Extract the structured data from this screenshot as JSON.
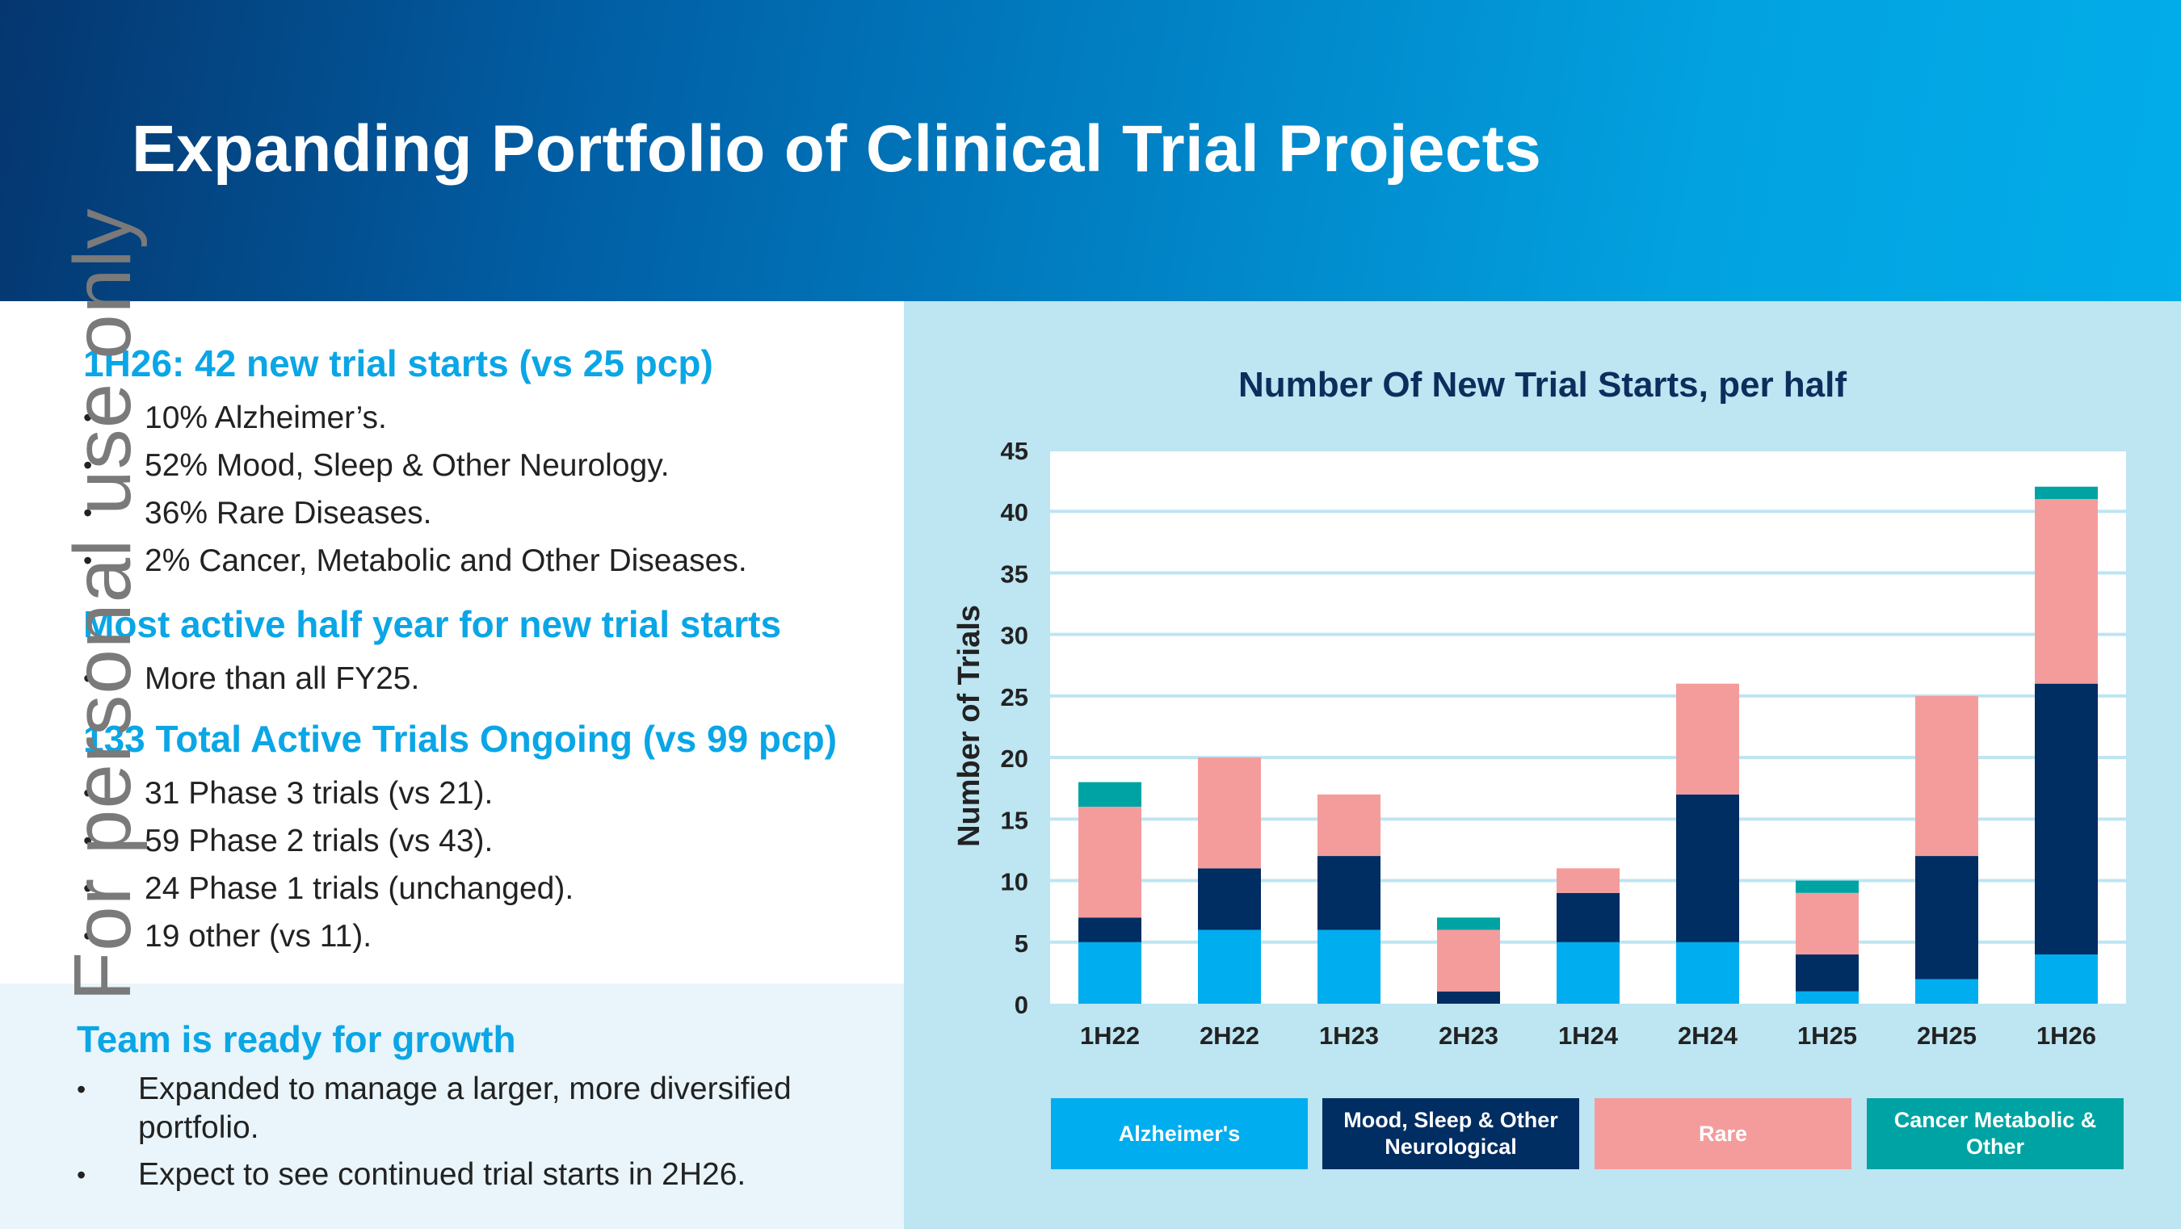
{
  "title": "Expanding Portfolio of Clinical Trial Projects",
  "watermark": "For personal use only",
  "sections": {
    "s1": {
      "heading": "1H26: 42 new trial starts (vs 25 pcp)",
      "items": [
        "10% Alzheimer’s.",
        "52% Mood, Sleep & Other Neurology.",
        "36% Rare Diseases.",
        "2% Cancer, Metabolic and Other Diseases."
      ]
    },
    "s2": {
      "heading": "Most active half year for new trial starts",
      "items": [
        "More than all FY25."
      ]
    },
    "s3": {
      "heading": "133 Total Active Trials Ongoing (vs 99 pcp)",
      "items": [
        "31 Phase 3 trials (vs 21).",
        "59 Phase 2 trials (vs 43).",
        "24 Phase 1 trials (unchanged).",
        "19 other (vs 11)."
      ]
    },
    "s4": {
      "heading": "Team is ready for growth",
      "items": [
        "Expanded to manage a larger, more diversified portfolio.",
        "Expect to see continued trial starts in 2H26."
      ]
    }
  },
  "bullet_glyph": "•",
  "chart_data": {
    "type": "bar",
    "stacked": true,
    "title": "Number Of New Trial Starts, per half",
    "xlabel": "",
    "ylabel": "Number of Trials",
    "ylim": [
      0,
      45
    ],
    "yticks": [
      0,
      5,
      10,
      15,
      20,
      25,
      30,
      35,
      40,
      45
    ],
    "grid": true,
    "legend_position": "bottom",
    "categories": [
      "1H22",
      "2H22",
      "1H23",
      "2H23",
      "1H24",
      "2H24",
      "1H25",
      "2H25",
      "1H26"
    ],
    "series": [
      {
        "name": "Alzheimer's",
        "color": "#00adef",
        "values": [
          5,
          6,
          6,
          0,
          5,
          5,
          1,
          2,
          4
        ]
      },
      {
        "name": "Mood, Sleep & Other Neurological",
        "color": "#002d62",
        "values": [
          2,
          5,
          6,
          1,
          4,
          12,
          3,
          10,
          22
        ]
      },
      {
        "name": "Rare",
        "color": "#f49c9c",
        "values": [
          9,
          9,
          5,
          5,
          2,
          9,
          5,
          13,
          15
        ]
      },
      {
        "name": "Cancer Metabolic & Other",
        "color": "#00a3a3",
        "values": [
          2,
          0,
          0,
          1,
          0,
          0,
          1,
          0,
          1
        ]
      }
    ]
  }
}
